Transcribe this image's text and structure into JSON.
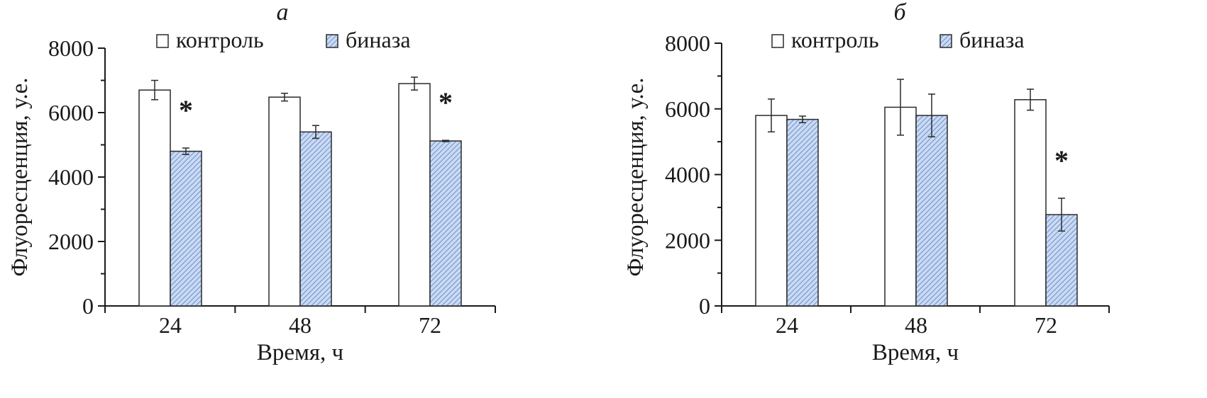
{
  "chart_data": [
    {
      "type": "bar",
      "panel": "а",
      "xlabel": "Время, ч",
      "ylabel": "Флуоресценция, у.е.",
      "ylim": [
        0,
        8000
      ],
      "yticks": [
        "0",
        "2000",
        "4000",
        "6000",
        "8000"
      ],
      "categories": [
        "24",
        "48",
        "72"
      ],
      "series": [
        {
          "name": "контроль",
          "values": [
            6700,
            6480,
            6900
          ],
          "errors": [
            300,
            120,
            200
          ]
        },
        {
          "name": "биназа",
          "values": [
            4800,
            5400,
            5120
          ],
          "errors": [
            100,
            200,
            20
          ]
        }
      ],
      "significance": [
        "*",
        "",
        "*"
      ],
      "legend": "top"
    },
    {
      "type": "bar",
      "panel": "б",
      "xlabel": "Время, ч",
      "ylabel": "Флуоресценция, у.е.",
      "ylim": [
        0,
        8000
      ],
      "yticks": [
        "0",
        "2000",
        "4000",
        "6000",
        "8000"
      ],
      "categories": [
        "24",
        "48",
        "72"
      ],
      "series": [
        {
          "name": "контроль",
          "values": [
            5800,
            6050,
            6280
          ],
          "errors": [
            500,
            850,
            320
          ]
        },
        {
          "name": "биназа",
          "values": [
            5680,
            5800,
            2780
          ],
          "errors": [
            100,
            650,
            500
          ]
        }
      ],
      "significance": [
        "",
        "",
        "*"
      ],
      "legend": "top"
    }
  ]
}
